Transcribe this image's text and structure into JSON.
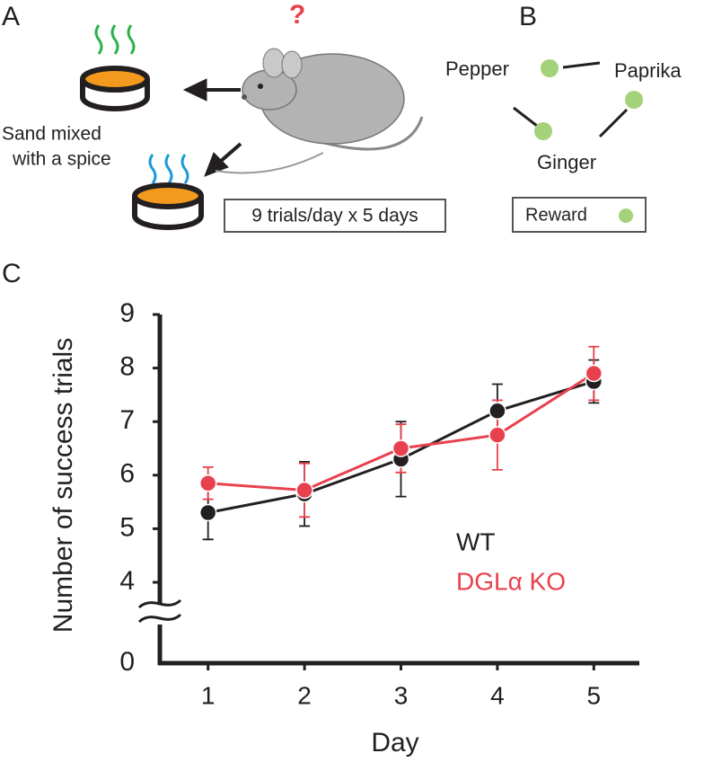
{
  "panel_labels": [
    "A",
    "B",
    "C"
  ],
  "panel_a": {
    "question_mark": "?",
    "caption": [
      "Sand mixed",
      "with a spice"
    ],
    "protocol": "9 trials/day x 5 days"
  },
  "panel_b": {
    "spices": [
      "Pepper",
      "Paprika",
      "Ginger"
    ],
    "legend": "Reward"
  },
  "chart_data": {
    "type": "line",
    "xlabel": "Day",
    "ylabel": "Number of success trials",
    "x": [
      1,
      2,
      3,
      4,
      5
    ],
    "xlim": [
      0.5,
      5.5
    ],
    "xticks": [
      1,
      2,
      3,
      4,
      5
    ],
    "ylim": [
      0,
      9
    ],
    "yticks": [
      0,
      4,
      5,
      6,
      7,
      8,
      9
    ],
    "y_break": [
      0,
      4
    ],
    "series": [
      {
        "name": "WT",
        "color": "#231f20",
        "values": [
          5.3,
          5.65,
          6.3,
          7.2,
          7.75
        ],
        "errors": [
          0.5,
          0.6,
          0.7,
          0.5,
          0.4
        ]
      },
      {
        "name": "DGLα KO",
        "color": "#e8414e",
        "values": [
          5.85,
          5.72,
          6.5,
          6.75,
          7.9
        ],
        "errors": [
          0.3,
          0.5,
          0.45,
          0.65,
          0.5
        ]
      }
    ]
  }
}
